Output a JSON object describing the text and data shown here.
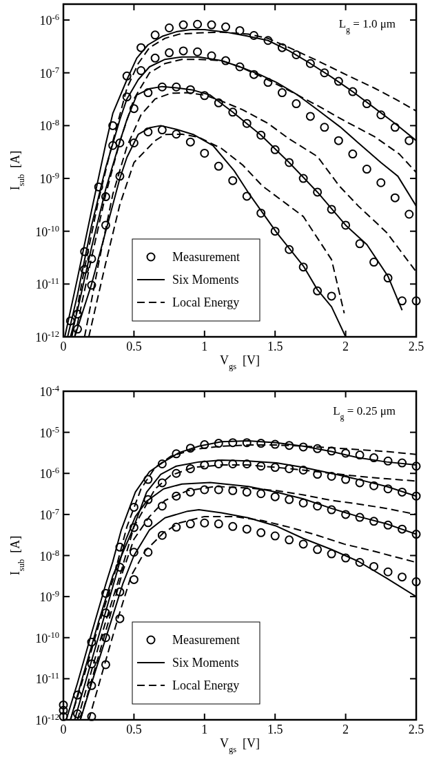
{
  "chart_data": [
    {
      "type": "line",
      "xlabel": "V$_{gs}$  [V]",
      "ylabel": "I$_{sub}$  [A]",
      "annotations": [
        "L$_{g}$ = 1.0 μm"
      ],
      "log": "y",
      "legend": "bottom left",
      "xlim": [
        0,
        2.5
      ],
      "xticks": [
        0,
        0.5,
        1,
        1.5,
        2,
        2.5
      ],
      "ylim": [
        1e-12,
        2e-06
      ],
      "yticks": [
        {
          "value": 1e-12,
          "label": "10$^{-12}$"
        },
        {
          "value": 1e-11,
          "label": "10$^{-11}$"
        },
        {
          "value": 1e-10,
          "label": "10$^{-10}$"
        },
        {
          "value": 1e-09,
          "label": "10$^{-9}$"
        },
        {
          "value": 1e-08,
          "label": "10$^{-8}$"
        },
        {
          "value": 1e-07,
          "label": "10$^{-7}$"
        },
        {
          "value": 1e-06,
          "label": "10$^{-6}$"
        }
      ],
      "series": [
        {
          "type": "scatter",
          "name": "Measurement",
          "marker": "circle",
          "color": "#000000",
          "x": [
            0.05,
            0.15,
            0.25,
            0.35,
            0.45,
            0.55,
            0.65,
            0.75,
            0.85,
            0.95,
            1.05,
            1.15,
            1.25,
            1.35,
            1.45,
            1.55,
            1.65,
            1.75,
            1.85,
            1.95,
            2.05,
            2.15,
            2.25,
            2.35,
            2.45
          ],
          "values": [
            2e-12,
            4.1e-11,
            6.9e-10,
            1e-08,
            8.7e-08,
            3e-07,
            5.2e-07,
            7.1e-07,
            8.1e-07,
            8.3e-07,
            8.1e-07,
            7.4e-07,
            6.3e-07,
            5.1e-07,
            4.1e-07,
            3e-07,
            2.2e-07,
            1.5e-07,
            1e-07,
            6.9e-08,
            4.4e-08,
            2.6e-08,
            1.6e-08,
            9.3e-09,
            5.2e-09
          ]
        },
        {
          "type": "scatter",
          "marker": "circle",
          "color": "#000000",
          "x": [
            0.15,
            0.35,
            0.45,
            0.55,
            0.65,
            0.75,
            0.85,
            0.95,
            1.05,
            1.15,
            1.25,
            1.35,
            1.45,
            1.55,
            1.65,
            1.75,
            1.85,
            1.95,
            2.05,
            2.15,
            2.25,
            2.35,
            2.45
          ],
          "values": [
            1.9e-11,
            4.2e-09,
            3.5e-08,
            1.1e-07,
            1.9e-07,
            2.4e-07,
            2.6e-07,
            2.5e-07,
            2.1e-07,
            1.7e-07,
            1.3e-07,
            9.3e-08,
            6.6e-08,
            4.2e-08,
            2.6e-08,
            1.5e-08,
            9.3e-09,
            5.2e-09,
            2.9e-09,
            1.5e-09,
            8.3e-10,
            4.3e-10,
            2.1e-10
          ]
        },
        {
          "type": "scatter",
          "marker": "circle",
          "color": "#000000",
          "x": [
            0.1,
            0.2,
            0.3,
            0.4,
            0.5,
            0.6,
            0.7,
            0.8,
            0.9,
            1.0,
            1.1,
            1.2,
            1.3,
            1.4,
            1.5,
            1.6,
            1.7,
            1.8,
            1.9,
            2.0,
            2.1,
            2.2,
            2.3,
            2.4,
            2.5
          ],
          "values": [
            2.7e-12,
            3e-11,
            4.5e-10,
            4.7e-09,
            2.1e-08,
            4.2e-08,
            5.4e-08,
            5.4e-08,
            4.8e-08,
            3.7e-08,
            2.7e-08,
            1.8e-08,
            1.1e-08,
            6.6e-09,
            3.5e-09,
            2e-09,
            1e-09,
            5.5e-10,
            2.6e-10,
            1.3e-10,
            5.8e-11,
            2.6e-11,
            1.3e-11,
            4.8e-12,
            4.8e-12
          ]
        },
        {
          "type": "scatter",
          "marker": "circle",
          "color": "#000000",
          "x": [
            0.1,
            0.2,
            0.3,
            0.4,
            0.5,
            0.6,
            0.7,
            0.8,
            0.9,
            1.0,
            1.1,
            1.2,
            1.3,
            1.4,
            1.5,
            1.6,
            1.7,
            1.8,
            1.9
          ],
          "values": [
            1.4e-12,
            9.5e-12,
            1.3e-10,
            1.1e-09,
            4.7e-09,
            7.6e-09,
            8.3e-09,
            6.9e-09,
            4.9e-09,
            3e-09,
            1.7e-09,
            9.1e-10,
            4.6e-10,
            2.2e-10,
            1e-10,
            4.5e-11,
            2.1e-11,
            7.4e-12,
            5.9e-12
          ]
        },
        {
          "type": "line",
          "name": "Six Moments",
          "line_style": "solid",
          "color": "#000000",
          "x": [
            0.01,
            0.1,
            0.2,
            0.3,
            0.35,
            0.45,
            0.52,
            0.6,
            0.7,
            0.8,
            0.9,
            1.0,
            1.15,
            1.3,
            1.45,
            1.6,
            1.75,
            1.9,
            2.05,
            2.2,
            2.35,
            2.5
          ],
          "values": [
            1e-12,
            1.3e-11,
            2.5e-10,
            4.5e-09,
            1.7e-08,
            7.4e-08,
            1.9e-07,
            3.4e-07,
            4.9e-07,
            6e-07,
            6.6e-07,
            6.6e-07,
            5.9e-07,
            5e-07,
            4.1e-07,
            2.6e-07,
            1.5e-07,
            8.3e-08,
            4.4e-08,
            2.2e-08,
            1.1e-08,
            5.2e-09
          ]
        },
        {
          "type": "line",
          "line_style": "solid",
          "color": "#000000",
          "x": [
            0.03,
            0.1,
            0.2,
            0.3,
            0.4,
            0.45,
            0.53,
            0.61,
            0.72,
            0.84,
            0.96,
            1.12,
            1.25,
            1.39,
            1.51,
            1.66,
            1.8,
            1.96,
            2.09,
            2.25,
            2.37,
            2.5
          ],
          "values": [
            1e-12,
            6.3e-12,
            1.3e-10,
            1.6e-09,
            1.3e-08,
            3.2e-08,
            7.4e-08,
            1.3e-07,
            1.8e-07,
            2e-07,
            2e-07,
            1.7e-07,
            1.3e-07,
            9.3e-08,
            6.6e-08,
            3.8e-08,
            2e-08,
            9.5e-09,
            4.7e-09,
            2e-09,
            1.1e-09,
            3e-10
          ]
        },
        {
          "type": "line",
          "line_style": "solid",
          "color": "#000000",
          "x": [
            0.05,
            0.1,
            0.2,
            0.3,
            0.4,
            0.45,
            0.52,
            0.61,
            0.7,
            0.8,
            0.92,
            1.04,
            1.2,
            1.4,
            1.6,
            1.8,
            2.0,
            2.15,
            2.3,
            2.4
          ],
          "values": [
            1e-12,
            3.2e-12,
            5e-11,
            6.3e-10,
            5e-09,
            1.3e-08,
            3.8e-08,
            5e-08,
            5.5e-08,
            5.2e-08,
            4.7e-08,
            3.8e-08,
            1.8e-08,
            6.6e-09,
            2e-09,
            5.5e-10,
            1.3e-10,
            5.6e-11,
            1.4e-11,
            3.2e-12
          ]
        },
        {
          "type": "line",
          "line_style": "solid",
          "color": "#000000",
          "x": [
            0.08,
            0.2,
            0.3,
            0.4,
            0.45,
            0.53,
            0.61,
            0.69,
            0.8,
            0.92,
            1.06,
            1.21,
            1.31,
            1.51,
            1.7,
            1.8,
            1.9,
            2.0
          ],
          "values": [
            1e-12,
            1e-11,
            1e-10,
            1e-09,
            2.5e-09,
            6.8e-09,
            9.1e-09,
            1e-08,
            8.5e-09,
            6.8e-09,
            4.2e-09,
            1.4e-09,
            5.4e-10,
            9.5e-11,
            2.2e-11,
            7.8e-12,
            3.7e-12,
            1e-12
          ]
        },
        {
          "type": "line",
          "name": "Local Energy",
          "line_style": "dashed",
          "color": "#000000",
          "x": [
            0.06,
            0.15,
            0.25,
            0.35,
            0.45,
            0.53,
            0.61,
            0.72,
            0.82,
            0.96,
            1.12,
            1.31,
            1.45,
            1.6,
            1.8,
            2.0,
            2.2,
            2.35,
            2.5
          ],
          "values": [
            1e-12,
            2e-11,
            4e-10,
            5e-09,
            5.1e-08,
            1.5e-07,
            3e-07,
            4.5e-07,
            5.4e-07,
            5.7e-07,
            5.9e-07,
            5.4e-07,
            4.5e-07,
            3e-07,
            1.7e-07,
            9.3e-08,
            5.2e-08,
            3.2e-08,
            1.9e-08
          ]
        },
        {
          "type": "line",
          "line_style": "dashed",
          "color": "#000000",
          "x": [
            0.08,
            0.2,
            0.3,
            0.4,
            0.5,
            0.61,
            0.72,
            0.84,
            0.96,
            1.12,
            1.25,
            1.41,
            1.6,
            1.8,
            2.0,
            2.2,
            2.38,
            2.5
          ],
          "values": [
            1e-12,
            3.2e-11,
            5e-10,
            5e-09,
            3.2e-08,
            1e-07,
            1.5e-07,
            1.8e-07,
            1.8e-07,
            1.7e-07,
            1.3e-07,
            8.3e-08,
            4.6e-08,
            2.4e-08,
            1.2e-08,
            6.3e-09,
            2.9e-09,
            1.3e-09
          ]
        },
        {
          "type": "line",
          "line_style": "dashed",
          "color": "#000000",
          "x": [
            0.15,
            0.25,
            0.35,
            0.45,
            0.55,
            0.65,
            0.76,
            0.88,
            1.0,
            1.11,
            1.27,
            1.45,
            1.6,
            1.8,
            1.955,
            2.09,
            2.29,
            2.5
          ],
          "values": [
            1e-12,
            2.5e-11,
            5e-10,
            4e-09,
            1.6e-08,
            3.2e-08,
            4.1e-08,
            4.2e-08,
            3.8e-08,
            3e-08,
            2e-08,
            1.1e-08,
            5.6e-09,
            2.6e-09,
            7.2e-10,
            3e-10,
            9.5e-11,
            1.7e-11
          ]
        },
        {
          "type": "line",
          "line_style": "dashed",
          "color": "#000000",
          "x": [
            0.18,
            0.3,
            0.4,
            0.5,
            0.65,
            0.72,
            0.84,
            0.96,
            1.12,
            1.27,
            1.41,
            1.7,
            1.9,
            1.99
          ],
          "values": [
            1e-12,
            2.5e-11,
            3.2e-10,
            2e-09,
            5.2e-09,
            6.8e-09,
            6.9e-09,
            6e-09,
            3.7e-09,
            1.8e-09,
            7.2e-10,
            1.9e-10,
            2.9e-11,
            2.8e-12
          ]
        }
      ]
    },
    {
      "type": "line",
      "xlabel": "V$_{gs}$  [V]",
      "ylabel": "I$_{sub}$  [A]",
      "annotations": [
        "L$_{g}$ = 0.25 μm"
      ],
      "log": "y",
      "legend": "bottom left",
      "xlim": [
        0,
        2.5
      ],
      "xticks": [
        0,
        0.5,
        1,
        1.5,
        2,
        2.5
      ],
      "ylim": [
        1e-12,
        0.0001
      ],
      "yticks": [
        {
          "value": 1e-12,
          "label": "10$^{-12}$"
        },
        {
          "value": 1e-11,
          "label": "10$^{-11}$"
        },
        {
          "value": 1e-10,
          "label": "10$^{-10}$"
        },
        {
          "value": 1e-09,
          "label": "10$^{-9}$"
        },
        {
          "value": 1e-08,
          "label": "10$^{-8}$"
        },
        {
          "value": 1e-07,
          "label": "10$^{-7}$"
        },
        {
          "value": 1e-06,
          "label": "10$^{-6}$"
        },
        {
          "value": 1e-05,
          "label": "10$^{-5}$"
        },
        {
          "value": 0.0001,
          "label": "10$^{-4}$"
        }
      ],
      "series": [
        {
          "type": "scatter",
          "name": "Measurement",
          "marker": "circle",
          "color": "#000000",
          "x": [
            0,
            0.1,
            0.2,
            0.3,
            0.4,
            0.5,
            0.6,
            0.7,
            0.8,
            0.9,
            1.0,
            1.1,
            1.2,
            1.3,
            1.4,
            1.5,
            1.6,
            1.7,
            1.8,
            1.9,
            2.0,
            2.1,
            2.2,
            2.3,
            2.4,
            2.5
          ],
          "values": [
            2.3e-12,
            4e-12,
            7.8e-11,
            1.2e-09,
            1.6e-08,
            1.5e-07,
            7.1e-07,
            1.7e-06,
            3e-06,
            4.1e-06,
            5e-06,
            5.4e-06,
            5.6e-06,
            5.6e-06,
            5.4e-06,
            5.1e-06,
            4.8e-06,
            4.4e-06,
            4e-06,
            3.5e-06,
            3.1e-06,
            2.8e-06,
            2.4e-06,
            2e-06,
            1.8e-06,
            1.5e-06
          ]
        },
        {
          "type": "scatter",
          "marker": "circle",
          "color": "#000000",
          "x": [
            0,
            0.1,
            0.2,
            0.3,
            0.4,
            0.5,
            0.6,
            0.7,
            0.8,
            0.9,
            1.0,
            1.1,
            1.2,
            1.3,
            1.4,
            1.5,
            1.6,
            1.7,
            1.8,
            1.9,
            2.0,
            2.1,
            2.2,
            2.3,
            2.4,
            2.5
          ],
          "values": [
            1.7e-12,
            1.4e-12,
            2.3e-11,
            4e-10,
            5.2e-09,
            4.8e-08,
            2.3e-07,
            5.9e-07,
            1e-06,
            1.3e-06,
            1.6e-06,
            1.7e-06,
            1.7e-06,
            1.7e-06,
            1.5e-06,
            1.4e-06,
            1.3e-06,
            1.2e-06,
            9.5e-07,
            8.5e-07,
            7.1e-07,
            5.9e-07,
            5e-07,
            4.2e-07,
            3.5e-07,
            2.8e-07
          ]
        },
        {
          "type": "scatter",
          "marker": "circle",
          "color": "#000000",
          "x": [
            0,
            0.2,
            0.3,
            0.4,
            0.5,
            0.6,
            0.7,
            0.8,
            0.9,
            1.0,
            1.1,
            1.2,
            1.3,
            1.4,
            1.5,
            1.6,
            1.7,
            1.8,
            1.9,
            2.0,
            2.1,
            2.2,
            2.3,
            2.4,
            2.5
          ],
          "values": [
            1.2e-12,
            6.8e-12,
            1e-10,
            1.3e-09,
            1.2e-08,
            6.3e-08,
            1.6e-07,
            2.8e-07,
            3.5e-07,
            4e-07,
            4e-07,
            3.8e-07,
            3.5e-07,
            3.2e-07,
            2.7e-07,
            2.3e-07,
            1.9e-07,
            1.6e-07,
            1.3e-07,
            1e-07,
            8.5e-08,
            6.8e-08,
            5.5e-08,
            4.4e-08,
            3.3e-08
          ]
        },
        {
          "type": "scatter",
          "marker": "circle",
          "color": "#000000",
          "x": [
            0.2,
            0.3,
            0.4,
            0.5,
            0.6,
            0.7,
            0.8,
            0.9,
            1.0,
            1.1,
            1.2,
            1.3,
            1.4,
            1.5,
            1.6,
            1.7,
            1.8,
            1.9,
            2.0,
            2.1,
            2.2,
            2.3,
            2.4,
            2.5
          ],
          "values": [
            1.2e-12,
            2.2e-11,
            2.9e-10,
            2.6e-09,
            1.2e-08,
            3.1e-08,
            4.9e-08,
            5.9e-08,
            6.2e-08,
            5.9e-08,
            5.1e-08,
            4.4e-08,
            3.6e-08,
            3e-08,
            2.4e-08,
            1.9e-08,
            1.4e-08,
            1.1e-08,
            8.7e-09,
            6.8e-09,
            5.4e-09,
            4e-09,
            3e-09,
            2.3e-09
          ]
        },
        {
          "type": "line",
          "name": "Six Moments",
          "line_style": "solid",
          "color": "#000000",
          "x": [
            0.02,
            0.1,
            0.2,
            0.3,
            0.35,
            0.41,
            0.51,
            0.61,
            0.71,
            0.82,
            0.96,
            1.12,
            1.31,
            1.51,
            1.7,
            1.9,
            2.09,
            2.29,
            2.5
          ],
          "values": [
            1e-12,
            7.9e-12,
            1.3e-10,
            2e-09,
            7.1e-09,
            4.2e-08,
            3.5e-07,
            1.1e-06,
            1.9e-06,
            3.2e-06,
            4.6e-06,
            5.9e-06,
            6.2e-06,
            5.6e-06,
            4.6e-06,
            3.4e-06,
            2.4e-06,
            1.9e-06,
            1.6e-06
          ]
        },
        {
          "type": "line",
          "line_style": "solid",
          "color": "#000000",
          "x": [
            0.05,
            0.15,
            0.25,
            0.35,
            0.49,
            0.59,
            0.69,
            0.8,
            0.96,
            1.12,
            1.31,
            1.51,
            1.7,
            1.9,
            2.09,
            2.29,
            2.5
          ],
          "values": [
            1e-12,
            1.6e-11,
            2.5e-10,
            3.2e-09,
            4.2e-08,
            3.5e-07,
            9.5e-07,
            1.5e-06,
            1.9e-06,
            2.1e-06,
            2e-06,
            1.8e-06,
            1.4e-06,
            1e-06,
            7.1e-07,
            4.8e-07,
            2.8e-07
          ]
        },
        {
          "type": "line",
          "line_style": "solid",
          "color": "#000000",
          "x": [
            0.08,
            0.18,
            0.28,
            0.38,
            0.44,
            0.51,
            0.59,
            0.71,
            0.84,
            1.04,
            1.31,
            1.51,
            1.7,
            1.9,
            2.09,
            2.29,
            2.5
          ],
          "values": [
            1e-12,
            1.6e-11,
            2.5e-10,
            4e-09,
            2.3e-08,
            8.9e-08,
            2.1e-07,
            4.2e-07,
            5.5e-07,
            6e-07,
            4.8e-07,
            3.5e-07,
            2.4e-07,
            1.4e-07,
            8.9e-08,
            5.9e-08,
            3.3e-08
          ]
        },
        {
          "type": "line",
          "line_style": "solid",
          "color": "#000000",
          "x": [
            0.12,
            0.22,
            0.32,
            0.42,
            0.5,
            0.61,
            0.72,
            0.88,
            0.96,
            1.12,
            1.31,
            1.51,
            1.7,
            1.9,
            2.09,
            2.29,
            2.5
          ],
          "values": [
            1e-12,
            1.3e-11,
            1.6e-10,
            2e-09,
            1e-08,
            4.2e-08,
            8.3e-08,
            1.2e-07,
            1.3e-07,
            1.1e-07,
            8.3e-08,
            5.2e-08,
            2.6e-08,
            1.4e-08,
            7.2e-09,
            2.8e-09,
            1e-09
          ]
        },
        {
          "type": "line",
          "name": "Local Energy",
          "line_style": "dashed",
          "color": "#000000",
          "x": [
            0.05,
            0.15,
            0.25,
            0.35,
            0.45,
            0.55,
            0.65,
            0.76,
            0.92,
            1.12,
            1.31,
            1.51,
            1.7,
            1.9,
            2.09,
            2.29,
            2.5
          ],
          "values": [
            1e-12,
            1.3e-11,
            2e-10,
            2.5e-09,
            5e-08,
            4.2e-07,
            1.4e-06,
            2.6e-06,
            3.8e-06,
            4.6e-06,
            4.9e-06,
            4.9e-06,
            4.6e-06,
            4.2e-06,
            3.8e-06,
            3.4e-06,
            2.9e-06
          ]
        },
        {
          "type": "line",
          "line_style": "dashed",
          "color": "#000000",
          "x": [
            0.1,
            0.2,
            0.3,
            0.4,
            0.5,
            0.65,
            0.76,
            0.92,
            1.12,
            1.31,
            1.51,
            1.7,
            1.9,
            2.09,
            2.29,
            2.5
          ],
          "values": [
            1e-12,
            1.6e-11,
            2.5e-10,
            3.2e-09,
            5e-08,
            4.2e-07,
            8.9e-07,
            1.4e-06,
            1.6e-06,
            1.6e-06,
            1.4e-06,
            1.2e-06,
            1e-06,
            8.5e-07,
            7.4e-07,
            6.5e-07
          ]
        },
        {
          "type": "line",
          "line_style": "dashed",
          "color": "#000000",
          "x": [
            0.12,
            0.22,
            0.32,
            0.42,
            0.5,
            0.61,
            0.72,
            0.88,
            1.08,
            1.31,
            1.51,
            1.7,
            1.9,
            2.09,
            2.29,
            2.5
          ],
          "values": [
            1e-12,
            1.6e-11,
            2.5e-10,
            4e-09,
            2.5e-08,
            8.9e-08,
            2.2e-07,
            3.8e-07,
            4.8e-07,
            4.4e-07,
            3.8e-07,
            3e-07,
            2.2e-07,
            1.8e-07,
            1.4e-07,
            1e-07
          ]
        },
        {
          "type": "line",
          "line_style": "dashed",
          "color": "#000000",
          "x": [
            0.18,
            0.28,
            0.38,
            0.48,
            0.58,
            0.71,
            0.82,
            1.0,
            1.21,
            1.41,
            1.6,
            1.8,
            1.99,
            2.19,
            2.5
          ],
          "values": [
            1e-12,
            1.6e-11,
            2.5e-10,
            3.2e-09,
            1.3e-08,
            3.6e-08,
            6.2e-08,
            8.9e-08,
            8.9e-08,
            7.1e-08,
            4.9e-08,
            3.1e-08,
            1.9e-08,
            1.3e-08,
            6.8e-09
          ]
        }
      ]
    }
  ]
}
